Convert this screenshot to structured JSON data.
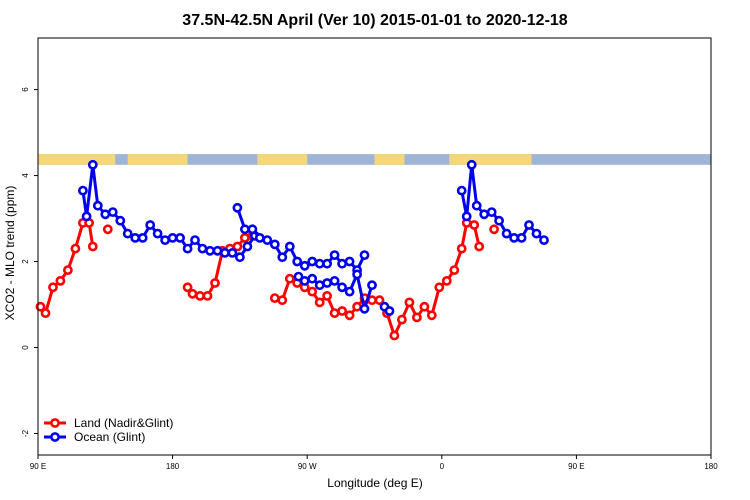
{
  "chart_data": {
    "type": "line",
    "title": "37.5N-42.5N April (Ver 10)   2015-01-01 to 2020-12-18",
    "xlabel": "Longitude (deg E)",
    "ylabel": "XCO2 - MLO trend (ppm)",
    "xlim": [
      -90,
      180
    ],
    "ylim": [
      -2.5,
      7.2
    ],
    "x_ticks": [
      -90,
      -45,
      0,
      45,
      90,
      135,
      180
    ],
    "x_tick_labels": [
      "90 E",
      "180",
      "90 W",
      "0",
      "90 E",
      "180"
    ],
    "x_tick_positions": [
      -90,
      -36,
      18,
      72,
      126,
      180
    ],
    "y_ticks": [
      -2,
      0,
      2,
      4,
      6
    ],
    "y_tick_labels": [
      "-2",
      "0",
      "2",
      "4",
      "6"
    ],
    "legend": {
      "placement": "bottom-left",
      "entries": [
        "Land (Nadir&Glint)",
        "Ocean (Glint)"
      ]
    },
    "colors": {
      "land": "#ff0000",
      "ocean": "#0000ee",
      "map_land": "#f5d77a",
      "map_ocean": "#9fb5d6"
    },
    "map_strip": {
      "y_range": [
        4.25,
        4.5
      ],
      "land_segments": [
        [
          -90,
          -59
        ],
        [
          -54,
          -30
        ],
        [
          -2,
          18
        ],
        [
          45,
          57
        ],
        [
          75,
          108
        ]
      ]
    },
    "series": [
      {
        "name": "Land (Nadir&Glint)",
        "segments": [
          [
            [
              -89,
              0.95
            ],
            [
              -87,
              0.8
            ],
            [
              -84,
              1.4
            ],
            [
              -81,
              1.55
            ],
            [
              -78,
              1.8
            ],
            [
              -75,
              2.3
            ],
            [
              -72,
              2.9
            ],
            [
              -69.5,
              2.9
            ],
            [
              -68,
              2.35
            ]
          ],
          [
            [
              -62,
              2.75
            ]
          ],
          [
            [
              -30,
              1.4
            ],
            [
              -28,
              1.25
            ],
            [
              -25,
              1.2
            ],
            [
              -22,
              1.2
            ],
            [
              -19,
              1.5
            ],
            [
              -16,
              2.25
            ],
            [
              -13,
              2.3
            ],
            [
              -10,
              2.35
            ],
            [
              -7,
              2.55
            ],
            [
              -4,
              2.6
            ]
          ],
          [
            [
              5,
              1.15
            ],
            [
              8,
              1.1
            ],
            [
              11,
              1.6
            ],
            [
              14,
              1.5
            ],
            [
              17,
              1.4
            ],
            [
              20,
              1.3
            ],
            [
              23,
              1.05
            ],
            [
              26,
              1.2
            ],
            [
              29,
              0.8
            ],
            [
              32,
              0.85
            ],
            [
              35,
              0.75
            ],
            [
              38,
              0.95
            ],
            [
              41,
              1.15
            ],
            [
              44,
              1.1
            ],
            [
              47,
              1.1
            ],
            [
              50,
              0.8
            ],
            [
              53,
              0.28
            ],
            [
              56,
              0.65
            ],
            [
              59,
              1.05
            ],
            [
              62,
              0.7
            ],
            [
              65,
              0.95
            ],
            [
              68,
              0.75
            ],
            [
              71,
              1.4
            ],
            [
              74,
              1.55
            ],
            [
              77,
              1.8
            ],
            [
              80,
              2.3
            ],
            [
              82,
              2.9
            ],
            [
              85,
              2.85
            ],
            [
              87,
              2.35
            ]
          ],
          [
            [
              93,
              2.75
            ]
          ]
        ]
      },
      {
        "name": "Ocean (Glint)",
        "segments": [
          [
            [
              -72,
              3.65
            ],
            [
              -70.5,
              3.05
            ],
            [
              -68,
              4.25
            ],
            [
              -66,
              3.3
            ],
            [
              -63,
              3.1
            ],
            [
              -60,
              3.15
            ],
            [
              -57,
              2.95
            ],
            [
              -54,
              2.65
            ],
            [
              -51,
              2.55
            ],
            [
              -48,
              2.55
            ],
            [
              -45,
              2.85
            ],
            [
              -42,
              2.65
            ],
            [
              -39,
              2.5
            ],
            [
              -36,
              2.55
            ],
            [
              -33,
              2.55
            ],
            [
              -30,
              2.3
            ],
            [
              -27,
              2.5
            ],
            [
              -24,
              2.3
            ],
            [
              -21,
              2.25
            ],
            [
              -18,
              2.25
            ],
            [
              -15,
              2.2
            ],
            [
              -12,
              2.2
            ],
            [
              -9,
              2.1
            ],
            [
              -6,
              2.35
            ],
            [
              -3,
              2.6
            ]
          ],
          [
            [
              -10,
              3.25
            ],
            [
              -7,
              2.75
            ],
            [
              -4,
              2.75
            ],
            [
              -1,
              2.55
            ],
            [
              2,
              2.5
            ],
            [
              5,
              2.4
            ],
            [
              8,
              2.1
            ],
            [
              11,
              2.35
            ],
            [
              14,
              2.0
            ],
            [
              17,
              1.9
            ],
            [
              20,
              2.0
            ],
            [
              23,
              1.95
            ],
            [
              26,
              1.95
            ],
            [
              29,
              2.15
            ],
            [
              32,
              1.95
            ],
            [
              35,
              2.0
            ],
            [
              38,
              1.8
            ],
            [
              41,
              2.15
            ]
          ],
          [
            [
              14.5,
              1.65
            ],
            [
              17,
              1.55
            ],
            [
              20,
              1.6
            ],
            [
              23,
              1.45
            ],
            [
              26,
              1.5
            ],
            [
              29,
              1.55
            ],
            [
              32,
              1.4
            ],
            [
              35,
              1.3
            ],
            [
              38,
              1.7
            ],
            [
              41,
              0.9
            ],
            [
              44,
              1.45
            ]
          ],
          [
            [
              49,
              0.95
            ],
            [
              51,
              0.85
            ]
          ],
          [
            [
              80,
              3.65
            ],
            [
              82,
              3.05
            ],
            [
              84,
              4.25
            ],
            [
              86,
              3.3
            ],
            [
              89,
              3.1
            ],
            [
              92,
              3.15
            ],
            [
              95,
              2.95
            ],
            [
              98,
              2.65
            ],
            [
              101,
              2.55
            ],
            [
              104,
              2.55
            ],
            [
              107,
              2.85
            ],
            [
              110,
              2.65
            ],
            [
              113,
              2.5
            ]
          ]
        ]
      }
    ]
  }
}
